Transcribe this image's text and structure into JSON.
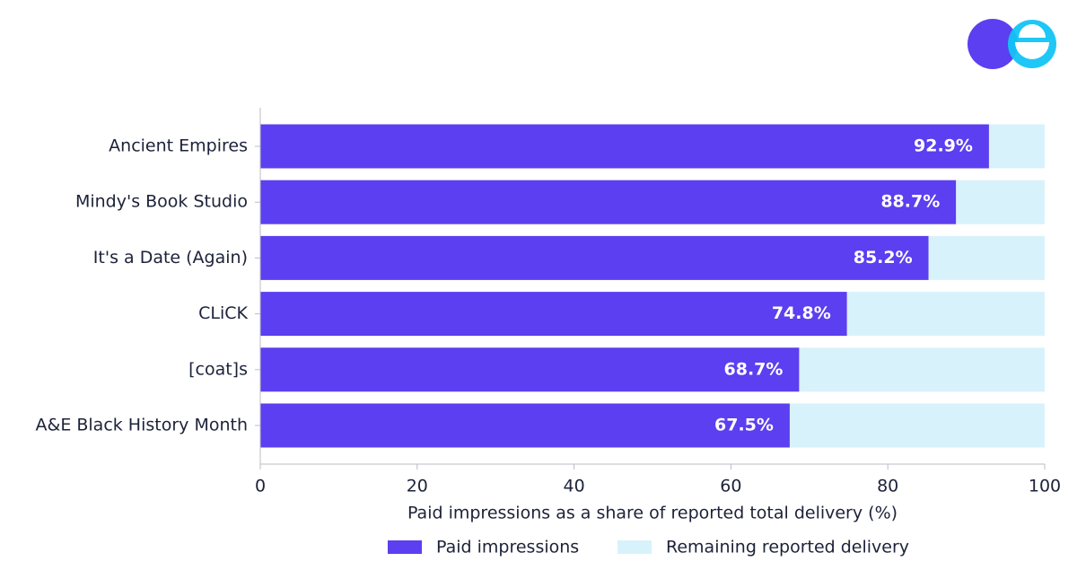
{
  "chart_data": {
    "type": "bar",
    "orientation": "horizontal",
    "stacked": true,
    "xlabel": "Paid impressions as a share of reported total delivery (%)",
    "categories": [
      "Ancient Empires",
      "Mindy's Book Studio",
      "It's a Date (Again)",
      "CLiCK",
      "[coat]s",
      "A&E Black History Month"
    ],
    "series": [
      {
        "name": "Paid impressions",
        "color": "#5b3ff0",
        "values": [
          92.9,
          88.7,
          85.2,
          74.8,
          68.7,
          67.5
        ],
        "value_labels": [
          "92.9%",
          "88.7%",
          "85.2%",
          "74.8%",
          "68.7%",
          "67.5%"
        ]
      },
      {
        "name": "Remaining reported delivery",
        "color": "#d8f2fb",
        "values": [
          7.1,
          11.3,
          14.8,
          25.2,
          31.3,
          32.5
        ]
      }
    ],
    "xlim": [
      0,
      100
    ],
    "xticks": [
      0,
      20,
      40,
      60,
      80,
      100
    ],
    "legend": "bottom"
  }
}
